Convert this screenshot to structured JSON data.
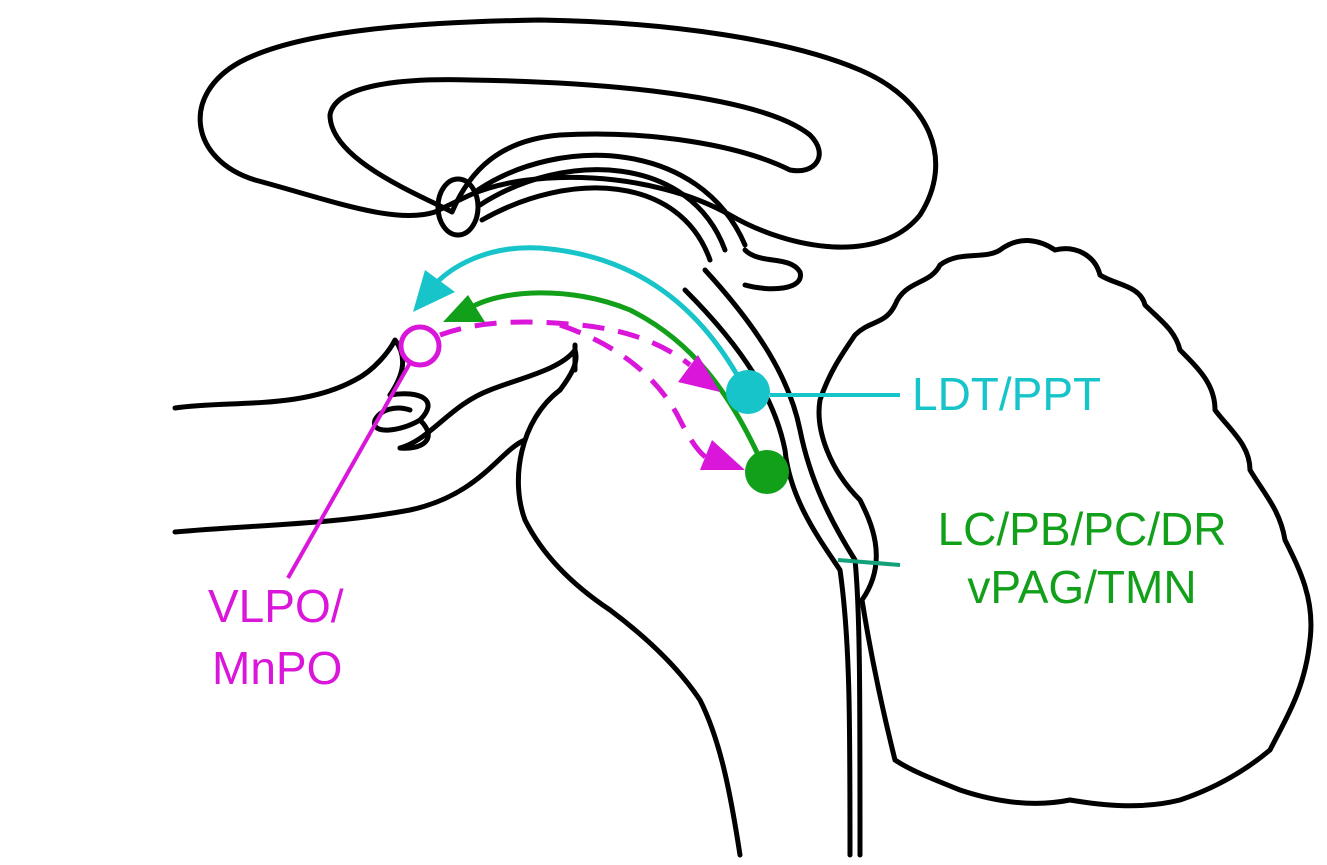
{
  "labels": {
    "ldt_ppt": "LDT/PPT",
    "lc_line1": "LC/PB/PC/DR",
    "lc_line2": "vPAG/TMN",
    "vlpo_line1": "VLPO/",
    "vlpo_line2": "MnPO"
  },
  "colors": {
    "outline": "#000000",
    "cyan": "#17c4c9",
    "green": "#12a01a",
    "magenta": "#d916d9",
    "leader_green": "#13a07a"
  },
  "nodes": {
    "ldt_ppt": {
      "fill": "solid",
      "color_ref": "cyan"
    },
    "lc_group": {
      "fill": "solid",
      "color_ref": "green"
    },
    "vlpo_mnpo": {
      "fill": "hollow",
      "color_ref": "magenta"
    }
  },
  "edges": [
    {
      "from": "ldt_ppt",
      "to": "vlpo_mnpo",
      "style": "solid",
      "color_ref": "cyan"
    },
    {
      "from": "lc_group",
      "to": "vlpo_mnpo",
      "style": "solid",
      "color_ref": "green"
    },
    {
      "from": "vlpo_mnpo",
      "to": "ldt_ppt",
      "style": "dashed",
      "color_ref": "magenta"
    },
    {
      "from": "vlpo_mnpo",
      "to": "lc_group",
      "style": "dashed",
      "color_ref": "magenta"
    }
  ]
}
